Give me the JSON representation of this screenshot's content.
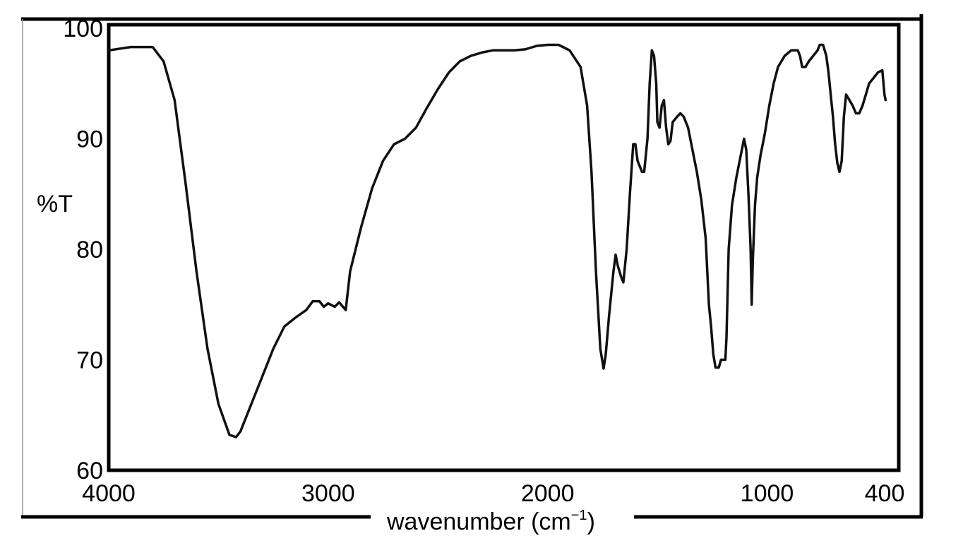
{
  "chart_data": {
    "type": "line",
    "ylabel": "%T",
    "xlabel": {
      "text": "wavenumber (cm",
      "superscript": "−1",
      "suffix": ")"
    },
    "xlim": [
      4000,
      400
    ],
    "ylim": [
      60,
      100
    ],
    "x_reversed": true,
    "grid": false,
    "x_ticks": [
      {
        "value": 4000,
        "label": "4000"
      },
      {
        "value": 3000,
        "label": "3000"
      },
      {
        "value": 2000,
        "label": "2000"
      },
      {
        "value": 1000,
        "label": "1000"
      },
      {
        "value": 400,
        "label": "400"
      }
    ],
    "y_ticks": [
      {
        "value": 100,
        "label": "100"
      },
      {
        "value": 90,
        "label": "90"
      },
      {
        "value": 80,
        "label": "80"
      },
      {
        "value": 70,
        "label": "70"
      },
      {
        "value": 60,
        "label": "60"
      }
    ],
    "series": [
      {
        "color": "#111111",
        "points": [
          [
            4000,
            98.0
          ],
          [
            3900,
            98.3
          ],
          [
            3800,
            98.3
          ],
          [
            3750,
            97.0
          ],
          [
            3700,
            93.5
          ],
          [
            3650,
            86.0
          ],
          [
            3600,
            78.0
          ],
          [
            3550,
            71.0
          ],
          [
            3500,
            66.0
          ],
          [
            3450,
            63.2
          ],
          [
            3420,
            63.0
          ],
          [
            3400,
            63.5
          ],
          [
            3350,
            66.0
          ],
          [
            3300,
            68.5
          ],
          [
            3250,
            71.0
          ],
          [
            3200,
            73.0
          ],
          [
            3150,
            73.8
          ],
          [
            3100,
            74.5
          ],
          [
            3070,
            75.3
          ],
          [
            3040,
            75.3
          ],
          [
            3020,
            74.8
          ],
          [
            3000,
            75.1
          ],
          [
            2970,
            74.8
          ],
          [
            2950,
            75.2
          ],
          [
            2920,
            74.5
          ],
          [
            2900,
            78.0
          ],
          [
            2850,
            82.0
          ],
          [
            2800,
            85.5
          ],
          [
            2750,
            88.0
          ],
          [
            2700,
            89.5
          ],
          [
            2650,
            90.0
          ],
          [
            2600,
            91.0
          ],
          [
            2550,
            92.8
          ],
          [
            2500,
            94.5
          ],
          [
            2450,
            96.0
          ],
          [
            2400,
            97.0
          ],
          [
            2350,
            97.5
          ],
          [
            2300,
            97.8
          ],
          [
            2250,
            98.0
          ],
          [
            2200,
            98.0
          ],
          [
            2150,
            98.0
          ],
          [
            2100,
            98.1
          ],
          [
            2050,
            98.4
          ],
          [
            2000,
            98.5
          ],
          [
            1950,
            98.5
          ],
          [
            1900,
            98.0
          ],
          [
            1850,
            96.5
          ],
          [
            1820,
            93.0
          ],
          [
            1800,
            87.0
          ],
          [
            1780,
            78.0
          ],
          [
            1760,
            71.0
          ],
          [
            1745,
            69.2
          ],
          [
            1735,
            70.5
          ],
          [
            1720,
            74.0
          ],
          [
            1700,
            78.0
          ],
          [
            1690,
            79.5
          ],
          [
            1680,
            78.5
          ],
          [
            1665,
            77.5
          ],
          [
            1655,
            77.0
          ],
          [
            1640,
            80.0
          ],
          [
            1625,
            85.0
          ],
          [
            1610,
            89.5
          ],
          [
            1600,
            89.5
          ],
          [
            1590,
            88.0
          ],
          [
            1580,
            87.5
          ],
          [
            1570,
            87.0
          ],
          [
            1560,
            87.0
          ],
          [
            1545,
            90.0
          ],
          [
            1535,
            95.0
          ],
          [
            1525,
            98.0
          ],
          [
            1515,
            97.5
          ],
          [
            1505,
            95.0
          ],
          [
            1500,
            91.5
          ],
          [
            1490,
            91.0
          ],
          [
            1480,
            93.0
          ],
          [
            1470,
            93.5
          ],
          [
            1460,
            91.0
          ],
          [
            1450,
            89.5
          ],
          [
            1440,
            89.8
          ],
          [
            1430,
            91.5
          ],
          [
            1410,
            92.0
          ],
          [
            1395,
            92.3
          ],
          [
            1380,
            92.0
          ],
          [
            1360,
            91.0
          ],
          [
            1340,
            89.0
          ],
          [
            1320,
            87.0
          ],
          [
            1300,
            84.5
          ],
          [
            1280,
            81.0
          ],
          [
            1265,
            75.0
          ],
          [
            1255,
            73.0
          ],
          [
            1245,
            70.5
          ],
          [
            1235,
            69.3
          ],
          [
            1220,
            69.3
          ],
          [
            1210,
            70.0
          ],
          [
            1200,
            70.0
          ],
          [
            1190,
            70.0
          ],
          [
            1185,
            72.0
          ],
          [
            1175,
            80.0
          ],
          [
            1160,
            84.0
          ],
          [
            1140,
            86.5
          ],
          [
            1120,
            88.5
          ],
          [
            1105,
            90.0
          ],
          [
            1095,
            89.0
          ],
          [
            1085,
            85.0
          ],
          [
            1075,
            80.0
          ],
          [
            1070,
            75.0
          ],
          [
            1065,
            79.0
          ],
          [
            1055,
            84.0
          ],
          [
            1045,
            86.5
          ],
          [
            1030,
            88.5
          ],
          [
            1010,
            90.5
          ],
          [
            990,
            93.0
          ],
          [
            970,
            95.0
          ],
          [
            950,
            96.5
          ],
          [
            920,
            97.5
          ],
          [
            890,
            98.0
          ],
          [
            860,
            98.0
          ],
          [
            850,
            97.5
          ],
          [
            840,
            96.5
          ],
          [
            825,
            96.5
          ],
          [
            810,
            97.0
          ],
          [
            790,
            97.5
          ],
          [
            770,
            98.0
          ],
          [
            760,
            98.5
          ],
          [
            745,
            98.5
          ],
          [
            730,
            97.5
          ],
          [
            720,
            96.0
          ],
          [
            710,
            94.0
          ],
          [
            700,
            92.0
          ],
          [
            690,
            89.5
          ],
          [
            680,
            87.8
          ],
          [
            670,
            87.0
          ],
          [
            660,
            88.0
          ],
          [
            650,
            92.0
          ],
          [
            640,
            94.0
          ],
          [
            625,
            93.5
          ],
          [
            610,
            93.0
          ],
          [
            595,
            92.3
          ],
          [
            580,
            92.3
          ],
          [
            565,
            93.0
          ],
          [
            550,
            94.0
          ],
          [
            535,
            95.0
          ],
          [
            515,
            95.5
          ],
          [
            495,
            96.0
          ],
          [
            475,
            96.2
          ],
          [
            465,
            94.0
          ],
          [
            460,
            93.5
          ]
        ]
      }
    ]
  }
}
